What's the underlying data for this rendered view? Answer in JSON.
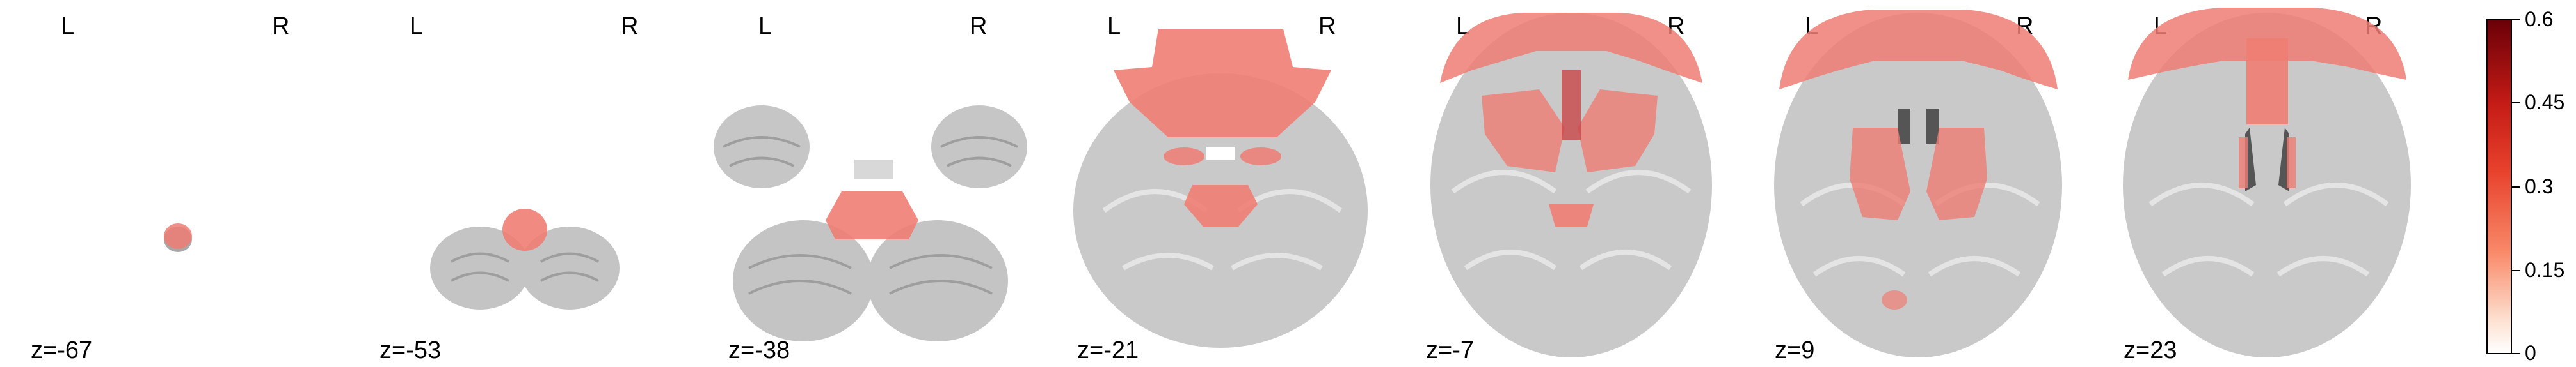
{
  "figure": {
    "orientation_labels": {
      "left": "L",
      "right": "R"
    },
    "slices": [
      {
        "label": "z=-67"
      },
      {
        "label": "z=-53"
      },
      {
        "label": "z=-38"
      },
      {
        "label": "z=-21"
      },
      {
        "label": "z=-7"
      },
      {
        "label": "z=9"
      },
      {
        "label": "z=23"
      }
    ],
    "colorbar": {
      "min": 0,
      "max": 0.6,
      "ticks": [
        "0.6",
        "0.45",
        "0.3",
        "0.15",
        "0"
      ],
      "colormap": [
        "#ffffff",
        "#fde0d0",
        "#f98a6a",
        "#e8412c",
        "#c51b16",
        "#6b0008"
      ]
    },
    "colors": {
      "brain_gray": "#bdbdbd",
      "overlay_salmon": "#ef7d73",
      "overlay_dark": "#c9474a"
    }
  }
}
